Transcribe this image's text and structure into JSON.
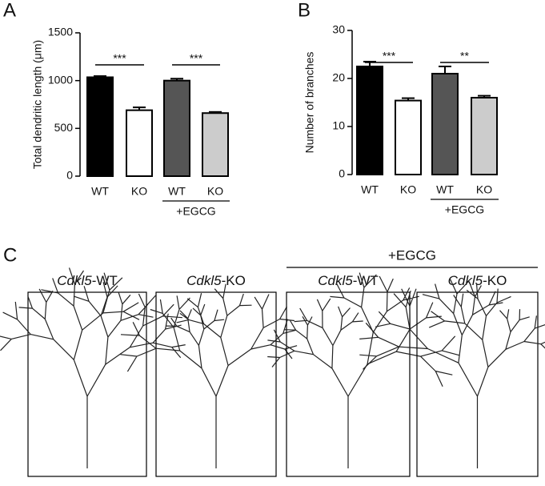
{
  "panels": [
    "A",
    "B",
    "C"
  ],
  "chart_data": [
    {
      "type": "bar",
      "ylabel": "Total dendritic length (μm)",
      "categories": [
        "WT",
        "KO",
        "WT",
        "KO"
      ],
      "values": [
        1035,
        690,
        1000,
        660
      ],
      "errors": [
        12,
        30,
        20,
        12
      ],
      "colors": [
        "#000000",
        "#ffffff",
        "#555555",
        "#cccccc"
      ],
      "ylim": [
        0,
        1500
      ],
      "yticks": [
        0,
        500,
        1000,
        1500
      ],
      "annotations": [
        "***",
        "***"
      ],
      "group_label": "+EGCG"
    },
    {
      "type": "bar",
      "ylabel": "Number of branches",
      "categories": [
        "WT",
        "KO",
        "WT",
        "KO"
      ],
      "values": [
        22.5,
        15.4,
        21,
        16
      ],
      "errors": [
        1,
        0.5,
        1.5,
        0.4
      ],
      "colors": [
        "#000000",
        "#ffffff",
        "#555555",
        "#cccccc"
      ],
      "ylim": [
        0,
        30
      ],
      "yticks": [
        0,
        10,
        20,
        30
      ],
      "annotations": [
        "***",
        "**"
      ],
      "group_label": "+EGCG"
    }
  ],
  "neurons": {
    "group_label": "+EGCG",
    "labels": [
      {
        "gene": "Cdkl5",
        "genotype": "-WT"
      },
      {
        "gene": "Cdkl5",
        "genotype": "-KO"
      },
      {
        "gene": "Cdkl5",
        "genotype": "-WT"
      },
      {
        "gene": "Cdkl5",
        "genotype": "-KO"
      }
    ]
  }
}
